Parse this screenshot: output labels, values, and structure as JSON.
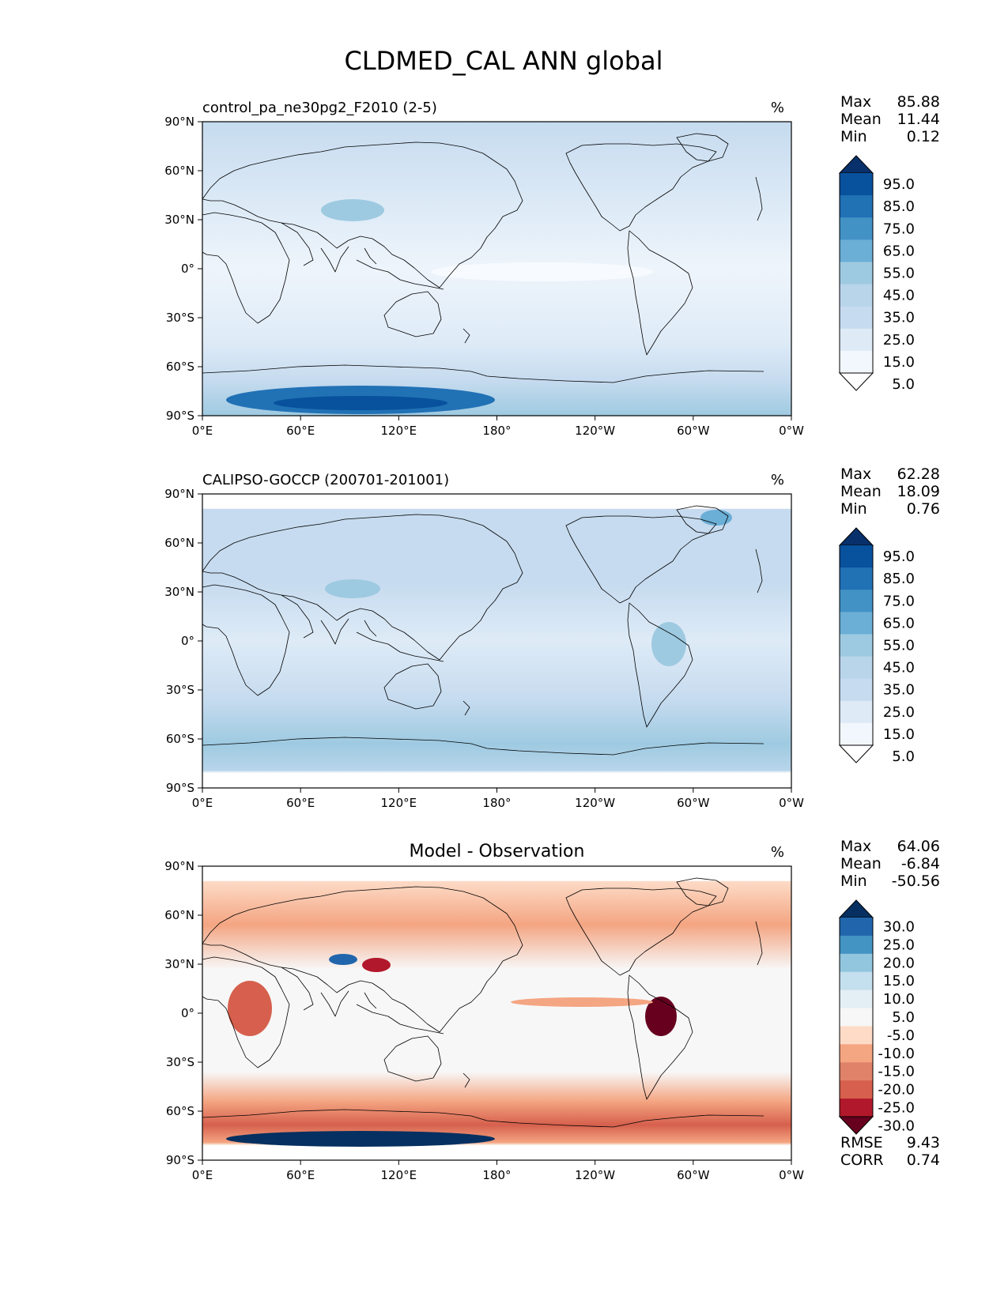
{
  "title": "CLDMED_CAL ANN global",
  "colors": {
    "field_scale": [
      "#f7fbff",
      "#deebf7",
      "#c6dbef",
      "#9ecae1",
      "#6baed6",
      "#4292c6",
      "#2171b5",
      "#08519c",
      "#08306b"
    ],
    "diff_scale": [
      "#67001f",
      "#b2182b",
      "#d6604d",
      "#f4a582",
      "#fddbc7",
      "#f7f7f7",
      "#d1e5f0",
      "#92c5de",
      "#4393c3",
      "#2166ac",
      "#053061"
    ],
    "land_outline": "#000000"
  },
  "chart_data": [
    {
      "type": "heatmap",
      "title": "control_pa_ne30pg2_F2010 (2-5)",
      "units": "%",
      "stats": [
        {
          "label": "Max",
          "value": "85.88"
        },
        {
          "label": "Mean",
          "value": "11.44"
        },
        {
          "label": "Min",
          "value": "0.12"
        }
      ],
      "colorbar_ticks": [
        "95.0",
        "85.0",
        "75.0",
        "65.0",
        "55.0",
        "45.0",
        "35.0",
        "25.0",
        "15.0",
        "5.0"
      ],
      "colorbar_colors": [
        "#08306b",
        "#08519c",
        "#2171b5",
        "#4292c6",
        "#6baed6",
        "#9ecae1",
        "#b8d5ea",
        "#c6dbef",
        "#deebf7",
        "#f2f7fd",
        "#ffffff"
      ],
      "xticks": [
        "0°E",
        "60°E",
        "120°E",
        "180°",
        "120°W",
        "60°W",
        "0°W"
      ],
      "yticks": [
        "90°N",
        "60°N",
        "30°N",
        "0°",
        "30°S",
        "60°S",
        "90°S"
      ],
      "xlim": [
        0,
        360
      ],
      "ylim": [
        -90,
        90
      ]
    },
    {
      "type": "heatmap",
      "title": "CALIPSO-GOCCP (200701-201001)",
      "units": "%",
      "stats": [
        {
          "label": "Max",
          "value": "62.28"
        },
        {
          "label": "Mean",
          "value": "18.09"
        },
        {
          "label": "Min",
          "value": "0.76"
        }
      ],
      "colorbar_ticks": [
        "95.0",
        "85.0",
        "75.0",
        "65.0",
        "55.0",
        "45.0",
        "35.0",
        "25.0",
        "15.0",
        "5.0"
      ],
      "colorbar_colors": [
        "#08306b",
        "#08519c",
        "#2171b5",
        "#4292c6",
        "#6baed6",
        "#9ecae1",
        "#b8d5ea",
        "#c6dbef",
        "#deebf7",
        "#f2f7fd",
        "#ffffff"
      ],
      "xticks": [
        "0°E",
        "60°E",
        "120°E",
        "180°",
        "120°W",
        "60°W",
        "0°W"
      ],
      "yticks": [
        "90°N",
        "60°N",
        "30°N",
        "0°",
        "30°S",
        "60°S",
        "90°S"
      ],
      "xlim": [
        0,
        360
      ],
      "ylim": [
        -90,
        90
      ]
    },
    {
      "type": "heatmap",
      "title": "Model - Observation",
      "units": "%",
      "stats": [
        {
          "label": "Max",
          "value": "64.06"
        },
        {
          "label": "Mean",
          "value": "-6.84"
        },
        {
          "label": "Min",
          "value": "-50.56"
        }
      ],
      "colorbar_ticks": [
        "30.0",
        "25.0",
        "20.0",
        "15.0",
        "10.0",
        "5.0",
        "-5.0",
        "-10.0",
        "-15.0",
        "-20.0",
        "-25.0",
        "-30.0"
      ],
      "colorbar_colors": [
        "#053061",
        "#2166ac",
        "#4393c3",
        "#92c5de",
        "#c4dfee",
        "#e3eef5",
        "#f7f7f7",
        "#fddbc7",
        "#f4a582",
        "#e0826a",
        "#d6604d",
        "#b2182b",
        "#67001f"
      ],
      "xticks": [
        "0°E",
        "60°E",
        "120°E",
        "180°",
        "120°W",
        "60°W",
        "0°W"
      ],
      "yticks": [
        "90°N",
        "60°N",
        "30°N",
        "0°",
        "30°S",
        "60°S",
        "90°S"
      ],
      "xlim": [
        0,
        360
      ],
      "ylim": [
        -90,
        90
      ],
      "metrics": [
        {
          "label": "RMSE",
          "value": "9.43"
        },
        {
          "label": "CORR",
          "value": "0.74"
        }
      ]
    }
  ]
}
